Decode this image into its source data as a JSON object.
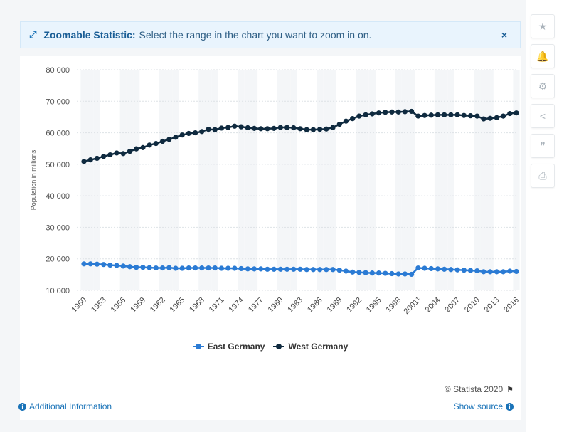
{
  "banner": {
    "title": "Zoomable Statistic:",
    "text": "Select the range in the chart you want to zoom in on.",
    "close_label": "×"
  },
  "sidebar": {
    "icons": [
      "star-icon",
      "bell-icon",
      "gear-icon",
      "share-icon",
      "quote-icon",
      "print-icon"
    ],
    "glyphs": [
      "★",
      "🔔",
      "⚙",
      "<",
      "❞",
      "⎙"
    ]
  },
  "footer": {
    "credit": "© Statista 2020",
    "additional_info": "Additional Information",
    "show_source": "Show source"
  },
  "colors": {
    "east": "#2b7bd4",
    "west": "#0f2a3f",
    "band": "#f4f6f8",
    "grid": "#dde2e6"
  },
  "chart_data": {
    "type": "line",
    "ylabel": "Population in millions",
    "xlabel": "",
    "ylim": [
      10000,
      80000
    ],
    "yticks": [
      "10 000",
      "20 000",
      "30 000",
      "40 000",
      "50 000",
      "60 000",
      "70 000",
      "80 000"
    ],
    "xticks": [
      "1950",
      "1953",
      "1956",
      "1959",
      "1962",
      "1965",
      "1968",
      "1971",
      "1974",
      "1977",
      "1980",
      "1983",
      "1986",
      "1989",
      "1992",
      "1995",
      "1998",
      "2001¹",
      "2004",
      "2007",
      "2010",
      "2013",
      "2016"
    ],
    "x": [
      "1950",
      "1951",
      "1952",
      "1953",
      "1954",
      "1955",
      "1956",
      "1957",
      "1958",
      "1959",
      "1960",
      "1961",
      "1962",
      "1963",
      "1964",
      "1965",
      "1966",
      "1967",
      "1968",
      "1969",
      "1970",
      "1971",
      "1972",
      "1973",
      "1974",
      "1975",
      "1976",
      "1977",
      "1978",
      "1979",
      "1980",
      "1981",
      "1982",
      "1983",
      "1984",
      "1985",
      "1986",
      "1987",
      "1988",
      "1989",
      "1990",
      "1991",
      "1992",
      "1993",
      "1994",
      "1995",
      "1996",
      "1997",
      "1998",
      "1999",
      "2000",
      "2001",
      "2002",
      "2003",
      "2004",
      "2005",
      "2006",
      "2007",
      "2008",
      "2009",
      "2010",
      "2011",
      "2012",
      "2013",
      "2014",
      "2015",
      "2016"
    ],
    "legend": "bottom",
    "series": [
      {
        "name": "East Germany",
        "values": [
          18400,
          18400,
          18300,
          18200,
          18000,
          17900,
          17700,
          17500,
          17300,
          17300,
          17200,
          17100,
          17100,
          17200,
          17000,
          17000,
          17100,
          17100,
          17100,
          17100,
          17100,
          17000,
          17000,
          17000,
          16900,
          16800,
          16800,
          16800,
          16700,
          16700,
          16700,
          16700,
          16700,
          16700,
          16600,
          16600,
          16600,
          16600,
          16600,
          16400,
          16100,
          15800,
          15700,
          15600,
          15500,
          15500,
          15400,
          15300,
          15200,
          15200,
          15100,
          17100,
          17000,
          16900,
          16800,
          16700,
          16600,
          16500,
          16400,
          16300,
          16200,
          15900,
          15900,
          15900,
          15900,
          16100,
          16000
        ]
      },
      {
        "name": "West Germany",
        "values": [
          50900,
          51400,
          51900,
          52500,
          53000,
          53600,
          53400,
          54100,
          54900,
          55300,
          56100,
          56600,
          57300,
          57900,
          58600,
          59300,
          59800,
          60000,
          60400,
          61100,
          61000,
          61500,
          61700,
          62100,
          61900,
          61600,
          61400,
          61300,
          61300,
          61400,
          61700,
          61700,
          61600,
          61300,
          61000,
          61000,
          61100,
          61200,
          61700,
          62700,
          63700,
          64500,
          65300,
          65700,
          66000,
          66300,
          66500,
          66600,
          66600,
          66700,
          66800,
          65300,
          65500,
          65600,
          65700,
          65700,
          65700,
          65700,
          65500,
          65400,
          65300,
          64400,
          64600,
          64800,
          65300,
          66100,
          66300
        ]
      }
    ]
  }
}
